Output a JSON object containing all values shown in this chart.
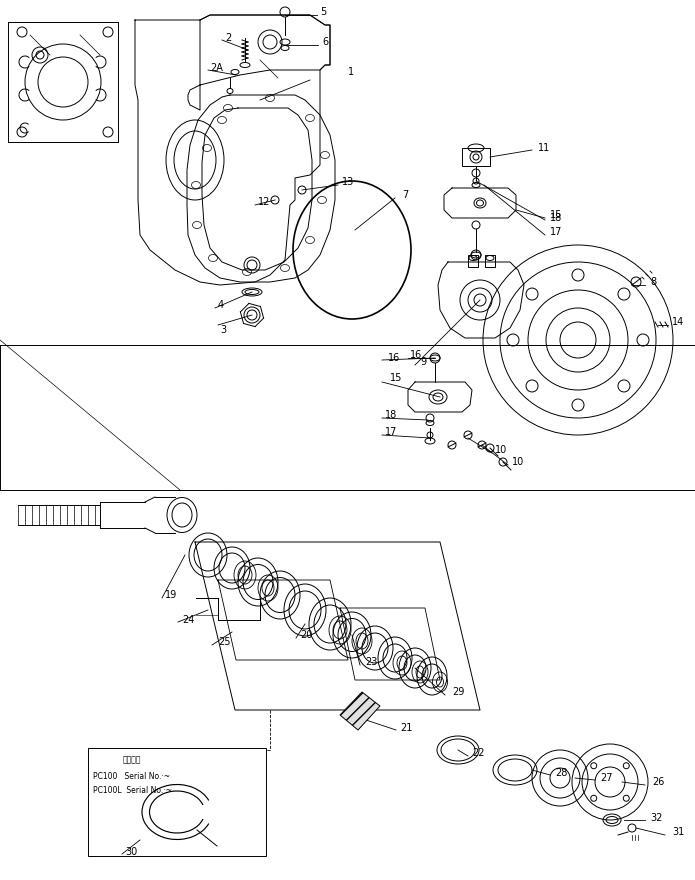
{
  "bg_color": "#ffffff",
  "line_color": "#000000",
  "figsize": [
    6.95,
    8.8
  ],
  "dpi": 100,
  "inset_text_lines": [
    "通用号旋",
    "PC100   Serial No.·~",
    "PC100L  Serial No.·~"
  ]
}
